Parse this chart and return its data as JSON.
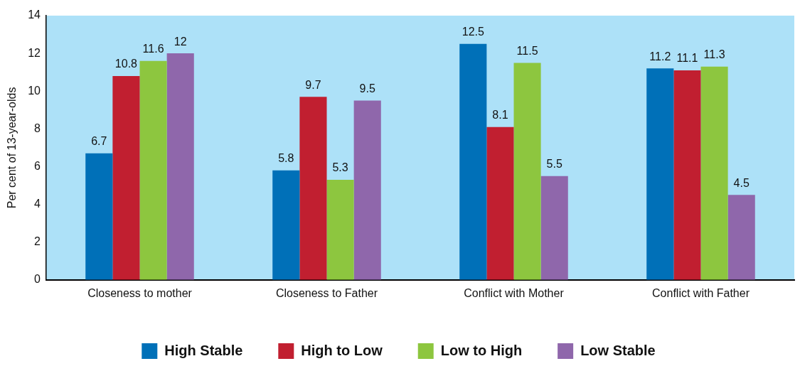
{
  "chart_data": {
    "type": "bar",
    "ylabel": "Per cent of 13-year-olds",
    "categories": [
      "Closeness to mother",
      "Closeness to Father",
      "Conflict with Mother",
      "Conflict with Father"
    ],
    "series": [
      {
        "name": "High Stable",
        "color": "#0070b8",
        "values": [
          6.7,
          5.8,
          12.5,
          11.2
        ]
      },
      {
        "name": "High to Low",
        "color": "#c11f30",
        "values": [
          10.8,
          9.7,
          8.1,
          11.1
        ]
      },
      {
        "name": "Low to High",
        "color": "#8dc63f",
        "values": [
          11.6,
          5.3,
          11.5,
          11.3
        ]
      },
      {
        "name": "Low Stable",
        "color": "#8f67ab",
        "values": [
          12,
          9.5,
          5.5,
          4.5
        ]
      }
    ],
    "ylim": [
      0,
      14
    ],
    "yticks": [
      0,
      2,
      4,
      6,
      8,
      10,
      12,
      14
    ],
    "grid": false,
    "legend": "bottom",
    "data_labels": true
  }
}
